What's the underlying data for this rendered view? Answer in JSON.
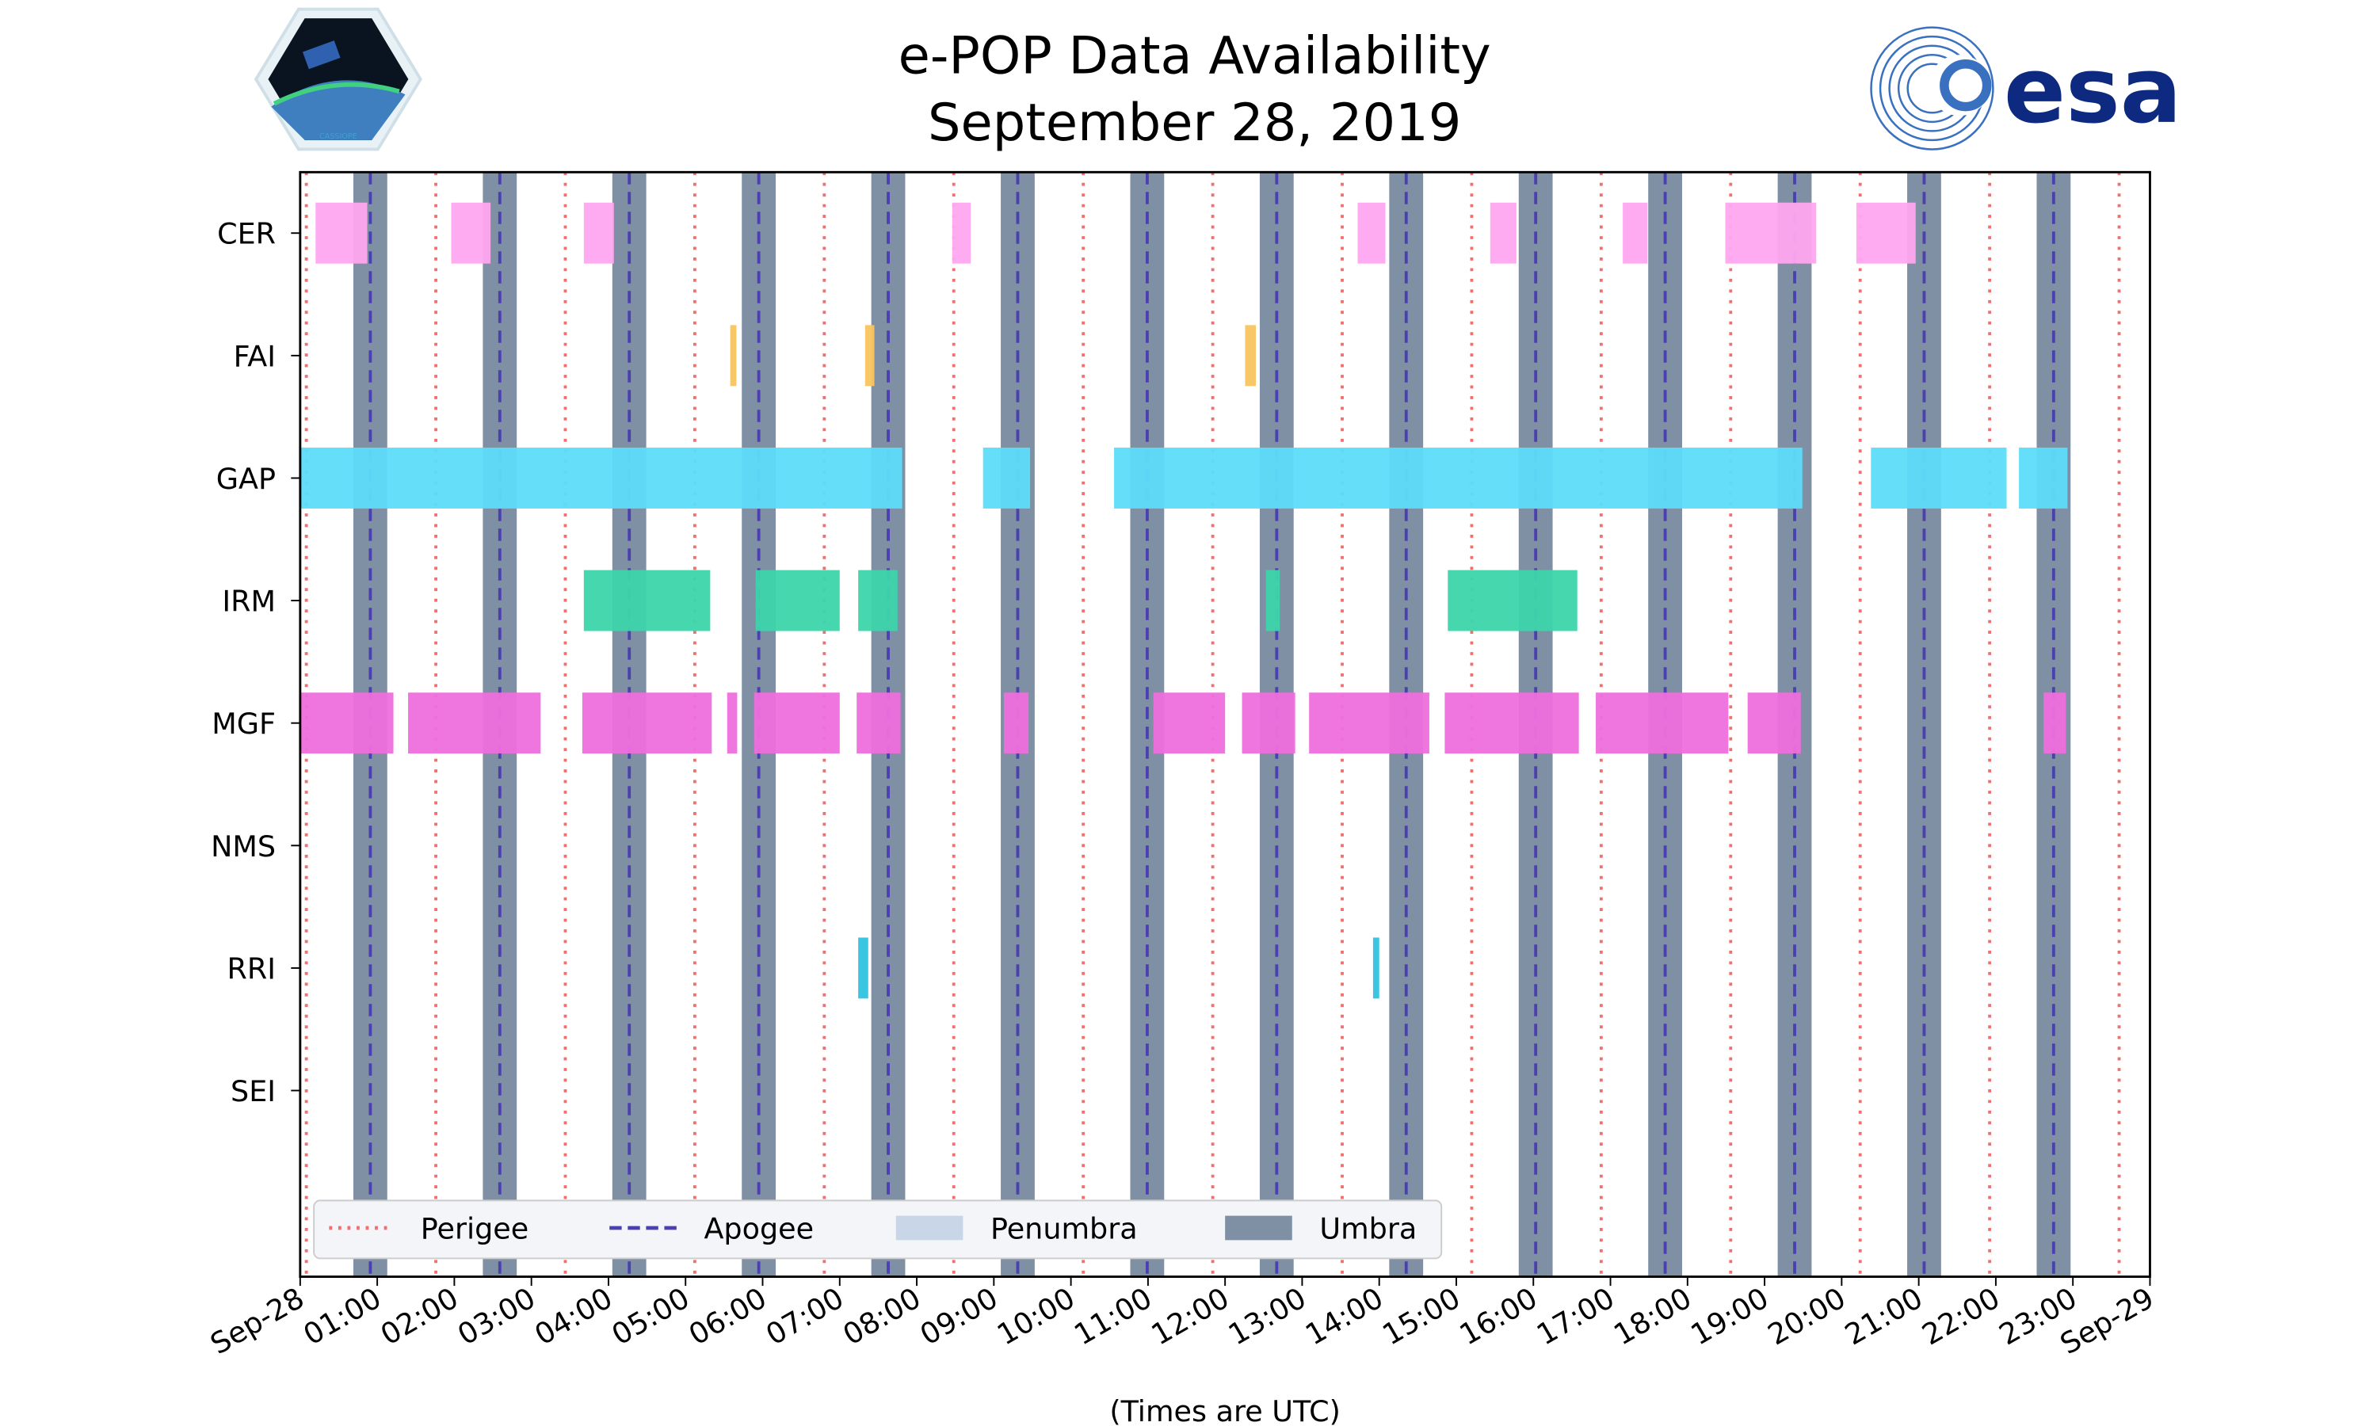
{
  "chart_data": {
    "type": "timeline",
    "title": "e-POP Data Availability",
    "subtitle": "September 28, 2019",
    "xlabel": "(Times are UTC)",
    "xlim_hours": [
      0,
      24
    ],
    "x_tick_labels": [
      "Sep-28",
      "01:00",
      "02:00",
      "03:00",
      "04:00",
      "05:00",
      "06:00",
      "07:00",
      "08:00",
      "09:00",
      "10:00",
      "11:00",
      "12:00",
      "13:00",
      "14:00",
      "15:00",
      "16:00",
      "17:00",
      "18:00",
      "19:00",
      "20:00",
      "21:00",
      "22:00",
      "23:00",
      "Sep-29"
    ],
    "instruments": [
      {
        "name": "CER",
        "color": "#ffa6f0",
        "intervals": [
          [
            0.2,
            0.87
          ],
          [
            1.96,
            2.47
          ],
          [
            3.68,
            4.07
          ],
          [
            8.46,
            8.7
          ],
          [
            13.72,
            14.08
          ],
          [
            15.44,
            15.78
          ],
          [
            17.16,
            17.48
          ],
          [
            18.49,
            19.67
          ],
          [
            20.19,
            20.96
          ]
        ]
      },
      {
        "name": "FAI",
        "color": "#f8c560",
        "intervals": [
          [
            5.58,
            5.66
          ],
          [
            7.33,
            7.45
          ],
          [
            12.26,
            12.4
          ]
        ]
      },
      {
        "name": "GAP",
        "color": "#5cdcf9",
        "intervals": [
          [
            0.0,
            7.81
          ],
          [
            8.86,
            9.47
          ],
          [
            10.56,
            19.49
          ],
          [
            20.38,
            22.14
          ],
          [
            22.3,
            22.93
          ]
        ]
      },
      {
        "name": "IRM",
        "color": "#3cd5ab",
        "intervals": [
          [
            3.68,
            5.32
          ],
          [
            5.91,
            7.0
          ],
          [
            7.24,
            7.75
          ],
          [
            12.53,
            12.71
          ],
          [
            14.89,
            16.57
          ]
        ]
      },
      {
        "name": "MGF",
        "color": "#ee6fdd",
        "intervals": [
          [
            0.0,
            1.21
          ],
          [
            1.4,
            3.12
          ],
          [
            3.66,
            5.34
          ],
          [
            5.54,
            5.67
          ],
          [
            5.89,
            7.0
          ],
          [
            7.22,
            7.79
          ],
          [
            9.13,
            9.45
          ],
          [
            11.07,
            12.0
          ],
          [
            12.22,
            12.91
          ],
          [
            13.09,
            14.65
          ],
          [
            14.85,
            16.59
          ],
          [
            16.81,
            18.53
          ],
          [
            18.78,
            19.47
          ],
          [
            22.62,
            22.91
          ]
        ]
      },
      {
        "name": "NMS",
        "color": "#888888",
        "intervals": []
      },
      {
        "name": "RRI",
        "color": "#2fc3df",
        "intervals": [
          [
            7.24,
            7.37
          ],
          [
            13.92,
            14.0
          ]
        ]
      },
      {
        "name": "SEI",
        "color": "#888888",
        "intervals": []
      }
    ],
    "perigee_hours": [
      0.08,
      1.76,
      3.44,
      5.12,
      6.8,
      8.48,
      10.16,
      11.84,
      13.52,
      15.2,
      16.88,
      18.56,
      20.24,
      21.92,
      23.6
    ],
    "apogee_hours": [
      0.91,
      2.59,
      4.27,
      5.95,
      7.63,
      9.31,
      10.99,
      12.67,
      14.35,
      16.03,
      17.71,
      19.39,
      21.07,
      22.75
    ],
    "umbra_intervals": [
      [
        0.69,
        1.13
      ],
      [
        2.37,
        2.81
      ],
      [
        4.05,
        4.49
      ],
      [
        5.73,
        6.17
      ],
      [
        7.41,
        7.85
      ],
      [
        9.09,
        9.53
      ],
      [
        10.77,
        11.21
      ],
      [
        12.45,
        12.89
      ],
      [
        14.13,
        14.57
      ],
      [
        15.81,
        16.25
      ],
      [
        17.49,
        17.93
      ],
      [
        19.17,
        19.61
      ],
      [
        20.85,
        21.29
      ],
      [
        22.53,
        22.97
      ]
    ],
    "colors": {
      "perigee": "#f07070",
      "apogee": "#4a40b0",
      "penumbra": "#c8d6e8",
      "umbra": "#8090a4"
    },
    "legend": {
      "position": "lower-left",
      "entries": [
        "Perigee",
        "Apogee",
        "Penumbra",
        "Umbra"
      ]
    }
  },
  "logos": {
    "left": "CASSIOPE",
    "right": "esa"
  }
}
